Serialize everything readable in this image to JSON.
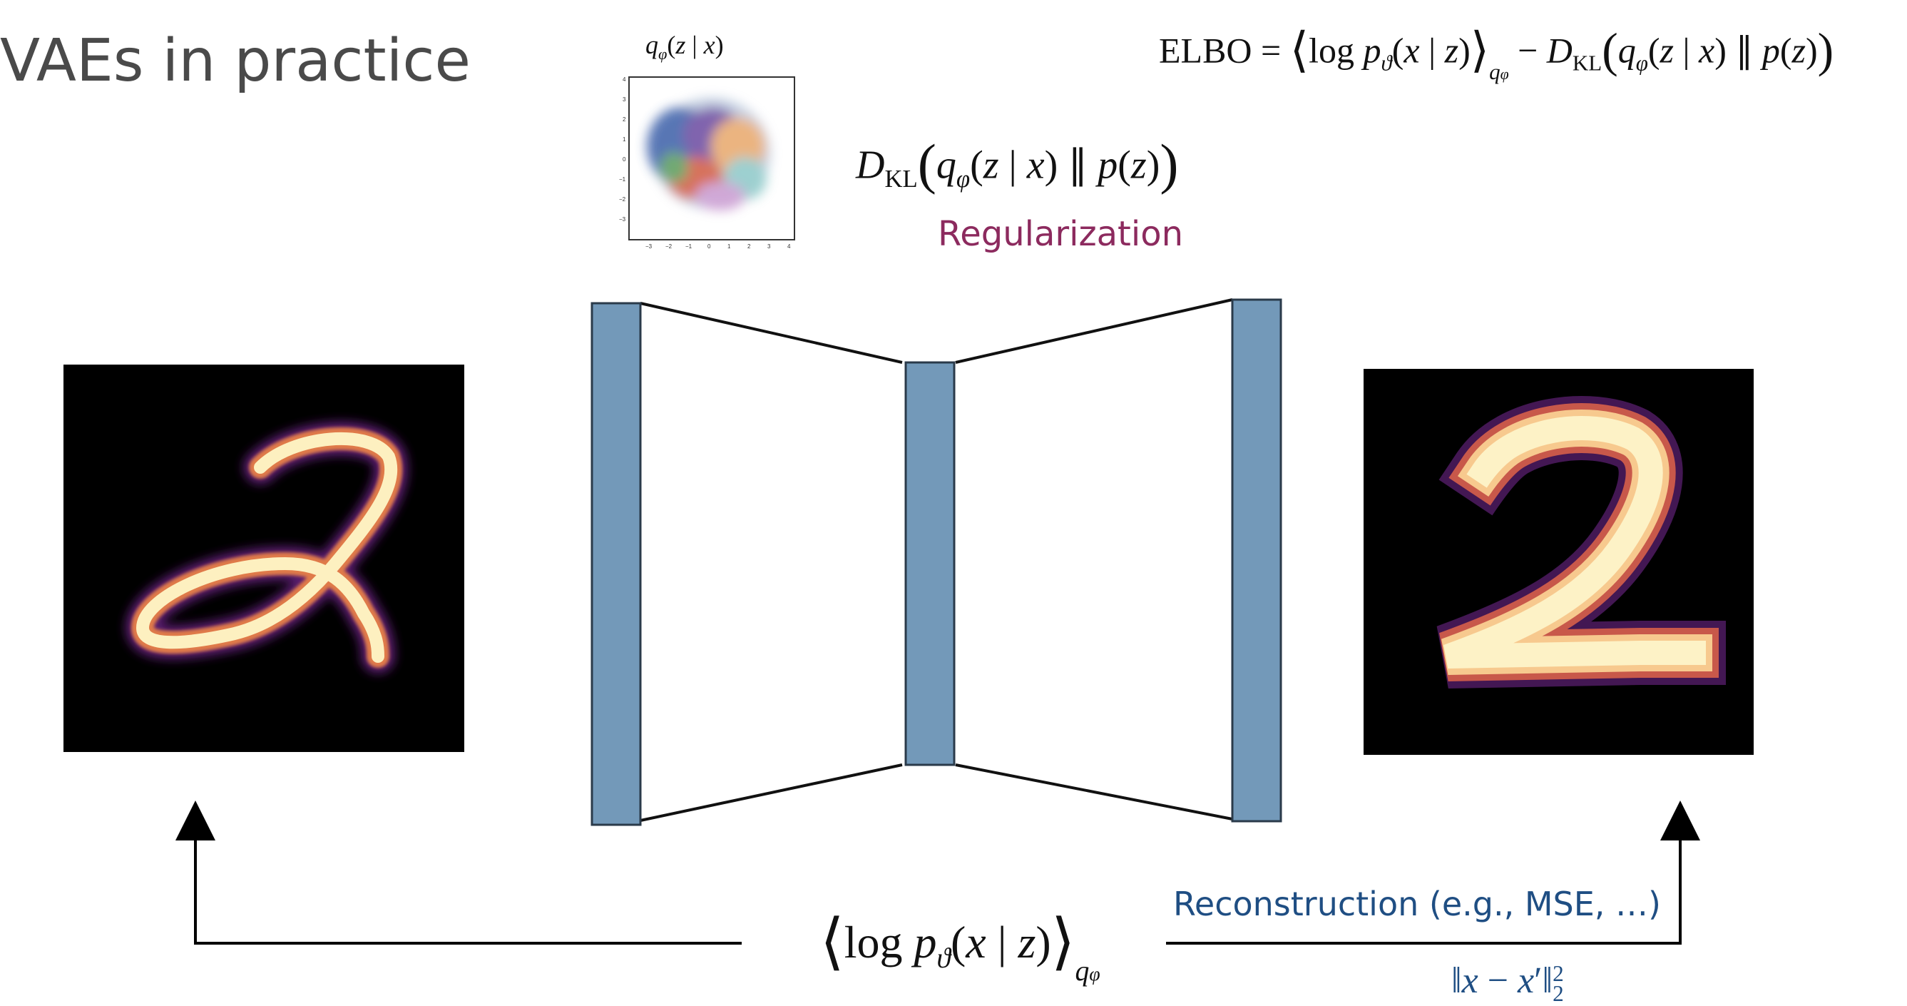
{
  "slide": {
    "title": "VAEs in practice"
  },
  "labels": {
    "regularization": "Regularization",
    "reconstruction": "Reconstruction (e.g., MSE, …)"
  },
  "equations": {
    "elbo": "ELBO = ⟨log pϑ(x | z)⟩qφ − DKL(qφ(z | x) ∥ p(z))",
    "kl": "DKL(qφ(z | x) ∥ p(z))",
    "loglik": "⟨log pϑ(x | z)⟩qφ",
    "mse_norm": "‖x − x′‖²₂",
    "latent_title": "qφ(z | x)"
  },
  "latent_plot": {
    "x_ticks": [
      "−3",
      "−2",
      "−1",
      "0",
      "1",
      "2",
      "3",
      "4"
    ],
    "y_ticks": [
      "4",
      "3",
      "2",
      "1",
      "0",
      "−1",
      "−2",
      "−3"
    ]
  },
  "colors": {
    "layer_fill": "#7399b9",
    "regularization": "#8c2a5e",
    "reconstruction": "#1f4e83"
  },
  "icons": [
    "input-digit-image",
    "reconstructed-digit-image",
    "latent-scatter-plot"
  ]
}
